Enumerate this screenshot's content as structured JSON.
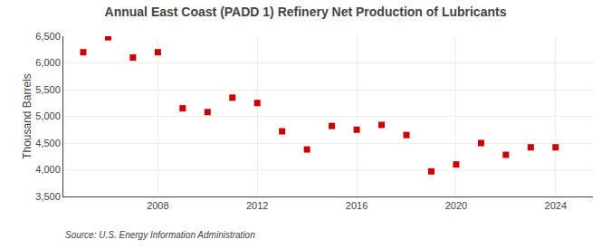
{
  "chart_data": {
    "type": "scatter",
    "title": "Annual East Coast (PADD 1) Refinery Net Production of Lubricants",
    "ylabel": "Thousand Barrels",
    "source": "Source: U.S. Energy Information Administration",
    "x": [
      2005,
      2006,
      2007,
      2008,
      2009,
      2010,
      2011,
      2012,
      2013,
      2014,
      2015,
      2016,
      2017,
      2018,
      2019,
      2020,
      2021,
      2022,
      2023,
      2024
    ],
    "values": [
      6200,
      6480,
      6100,
      6200,
      5150,
      5080,
      5350,
      5250,
      4720,
      4380,
      4820,
      4750,
      4840,
      4650,
      3970,
      4100,
      4500,
      4280,
      4420,
      4420
    ],
    "color": "#cc0000",
    "marker": "square",
    "xlim": [
      2004.2,
      2025.5
    ],
    "xticks": [
      2008,
      2012,
      2016,
      2020,
      2024
    ],
    "ylim": [
      3500,
      6500
    ],
    "yticks": [
      {
        "value": 3500,
        "label": "3,500"
      },
      {
        "value": 4000,
        "label": "4,000"
      },
      {
        "value": 4500,
        "label": "4,500"
      },
      {
        "value": 5000,
        "label": "5,000"
      },
      {
        "value": 5500,
        "label": "5,500"
      },
      {
        "value": 6000,
        "label": "6,000"
      },
      {
        "value": 6500,
        "label": "6,500"
      }
    ],
    "grid": true
  }
}
